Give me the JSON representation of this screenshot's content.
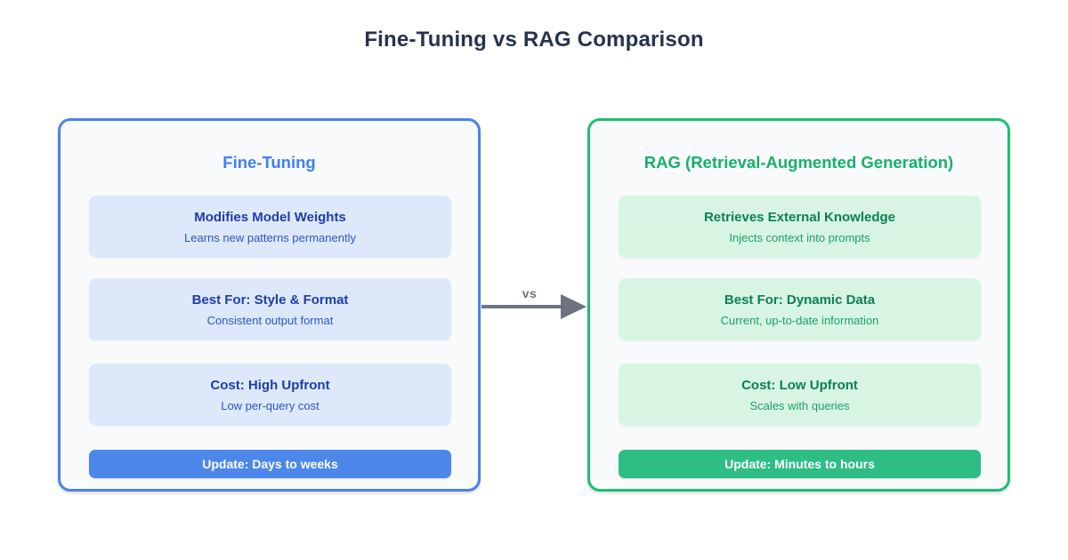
{
  "title": "Fine-Tuning vs RAG Comparison",
  "connector": {
    "label": "vs",
    "color": "#6d7480"
  },
  "colors": {
    "page_background": "#ffffff",
    "panel_background": "#f8fafc",
    "blue_accent": "#4a82e8",
    "blue_title": "#3e7df5",
    "blue_card_bg": "#dde9fb",
    "blue_card_heading": "#1f3da8",
    "blue_card_detail": "#2d54c6",
    "blue_footer_bg": "#4d87ea",
    "green_accent": "#1fbe71",
    "green_title": "#16b169",
    "green_card_bg": "#d8f5e4",
    "green_card_heading": "#0c8057",
    "green_card_detail": "#1d9f67",
    "green_footer_bg": "#2ebd85",
    "title_color": "#26334d"
  },
  "panels": [
    {
      "title": "Fine-Tuning",
      "cards": [
        {
          "heading": "Modifies Model Weights",
          "detail": "Learns new patterns permanently"
        },
        {
          "heading": "Best For: Style & Format",
          "detail": "Consistent output format"
        },
        {
          "heading": "Cost: High Upfront",
          "detail": "Low per-query cost"
        }
      ],
      "footer": "Update: Days to weeks"
    },
    {
      "title": "RAG (Retrieval-Augmented Generation)",
      "cards": [
        {
          "heading": "Retrieves External Knowledge",
          "detail": "Injects context into prompts"
        },
        {
          "heading": "Best For: Dynamic Data",
          "detail": "Current, up-to-date information"
        },
        {
          "heading": "Cost: Low Upfront",
          "detail": "Scales with queries"
        }
      ],
      "footer": "Update: Minutes to hours"
    }
  ]
}
